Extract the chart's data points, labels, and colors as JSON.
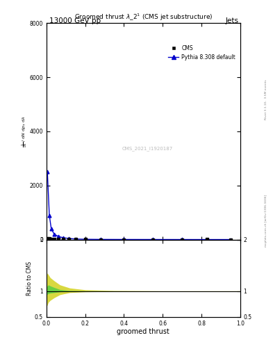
{
  "title": "13000 GeV pp",
  "title_right": "Jets",
  "plot_title": "Groomed thrust $\\lambda\\_2^1$ (CMS jet substructure)",
  "watermark": "CMS_2021_I1920187",
  "rivet_label": "Rivet 3.1.10,  3.5M events",
  "mcplots_label": "mcplots.cern.ch [arXiv:1306.3436]",
  "xlabel": "groomed thrust",
  "ylabel_lines": [
    "$\\mathrm{mathrm\\,d}^2N$",
    "$\\mathrm{mathrm\\,d}\\,p_T\\,\\mathrm{mathrm\\,d}\\,\\lambda$",
    "$\\frac{1}{\\mathrm{d}N}$"
  ],
  "xlim": [
    0,
    1
  ],
  "ylim_main": [
    0,
    8000
  ],
  "ylim_ratio": [
    0.5,
    2
  ],
  "yticks_main": [
    0,
    2000,
    4000,
    6000,
    8000
  ],
  "yticks_ratio": [
    0.5,
    1.0,
    2.0
  ],
  "cms_x": [
    0.005,
    0.015,
    0.025,
    0.04,
    0.06,
    0.085,
    0.115,
    0.15,
    0.2,
    0.28,
    0.4,
    0.55,
    0.7,
    0.83,
    0.95
  ],
  "cms_y": [
    50,
    30,
    15,
    10,
    5,
    3,
    2,
    1,
    1,
    0,
    0,
    0,
    0,
    10,
    0
  ],
  "cms_yerr_lo": [
    10,
    8,
    5,
    3,
    2,
    1,
    1,
    0.5,
    0.5,
    0.3,
    0.3,
    0.3,
    0.3,
    3,
    0.3
  ],
  "cms_yerr_hi": [
    10,
    8,
    5,
    3,
    2,
    1,
    1,
    0.5,
    0.5,
    0.3,
    0.3,
    0.3,
    0.3,
    3,
    0.3
  ],
  "pythia_x": [
    0.005,
    0.015,
    0.025,
    0.04,
    0.06,
    0.085,
    0.115,
    0.15,
    0.2,
    0.28,
    0.4,
    0.55,
    0.7,
    0.83,
    0.95
  ],
  "pythia_y": [
    2500,
    900,
    400,
    200,
    120,
    70,
    40,
    20,
    10,
    5,
    3,
    2,
    1,
    0.5,
    0.3
  ],
  "green_band_x": [
    0.0,
    0.005,
    0.01,
    0.02,
    0.04,
    0.07,
    0.12,
    0.2,
    0.35,
    0.6,
    1.0
  ],
  "green_band_low": [
    0.92,
    0.94,
    0.95,
    0.96,
    0.97,
    0.985,
    0.993,
    0.997,
    0.999,
    0.999,
    0.999
  ],
  "green_band_high": [
    1.08,
    1.1,
    1.12,
    1.1,
    1.07,
    1.03,
    1.01,
    1.004,
    1.002,
    1.001,
    1.001
  ],
  "yellow_band_x": [
    0.0,
    0.005,
    0.01,
    0.02,
    0.04,
    0.07,
    0.12,
    0.2,
    0.35,
    0.6,
    1.0
  ],
  "yellow_band_low": [
    0.7,
    0.73,
    0.78,
    0.82,
    0.87,
    0.93,
    0.97,
    0.985,
    0.993,
    0.997,
    0.997
  ],
  "yellow_band_high": [
    1.3,
    1.35,
    1.32,
    1.26,
    1.2,
    1.12,
    1.06,
    1.025,
    1.01,
    1.004,
    1.004
  ],
  "cms_color": "#000000",
  "pythia_color": "#0000cc",
  "green_color": "#44cc44",
  "yellow_color": "#cccc00",
  "bg_color": "#ffffff"
}
